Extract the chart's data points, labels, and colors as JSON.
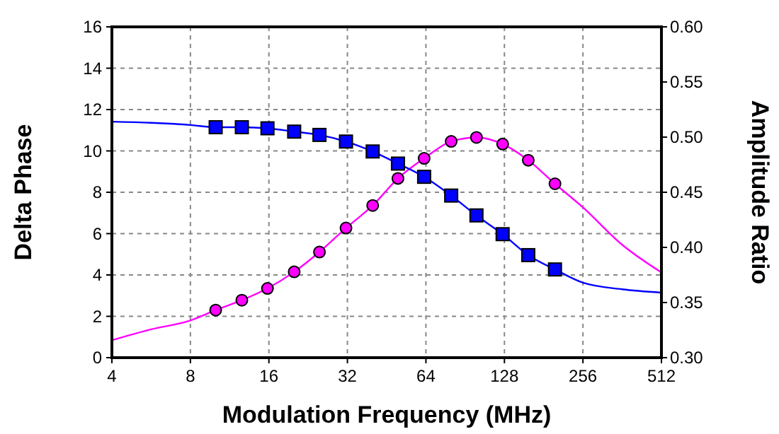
{
  "chart_data": {
    "type": "line",
    "xlabel": "Modulation Frequency (MHz)",
    "ylabel": "Delta Phase",
    "y2label": "Amplitude Ratio",
    "log": "x",
    "grid": true,
    "xlim": [
      4,
      512
    ],
    "xticks": [
      4,
      8,
      16,
      32,
      64,
      128,
      256,
      512
    ],
    "ylim": [
      0,
      16
    ],
    "yticks": [
      0,
      2,
      4,
      6,
      8,
      10,
      12,
      14,
      16
    ],
    "y2lim": [
      0.3,
      0.6
    ],
    "y2ticks": [
      {
        "value": 0.3,
        "label": "0.30"
      },
      {
        "value": 0.35,
        "label": "0.35"
      },
      {
        "value": 0.4,
        "label": "0.40"
      },
      {
        "value": 0.45,
        "label": "0.45"
      },
      {
        "value": 0.5,
        "label": "0.50"
      },
      {
        "value": 0.55,
        "label": "0.55"
      },
      {
        "value": 0.6,
        "label": "0.60"
      }
    ],
    "series": [
      {
        "color": "#ff00ff",
        "marker": "none",
        "x": [
          4,
          5.66,
          8,
          10,
          12.6,
          15.8,
          20,
          25,
          31.6,
          40,
          50,
          63,
          80,
          100,
          126,
          158,
          200,
          256,
          362,
          512
        ],
        "values": [
          0.84,
          1.37,
          1.8,
          2.3,
          2.78,
          3.35,
          4.15,
          5.11,
          6.27,
          7.36,
          8.67,
          9.64,
          10.46,
          10.65,
          10.33,
          9.55,
          8.41,
          7.27,
          5.46,
          4.12
        ]
      },
      {
        "axis": "y2",
        "color": "#0000ff",
        "marker": "none",
        "x": [
          4,
          5.66,
          8,
          10,
          12.6,
          15.8,
          20,
          25,
          31.6,
          40,
          50,
          63,
          80,
          100,
          126,
          158,
          200,
          256,
          362,
          512
        ],
        "values": [
          0.514,
          0.513,
          0.511,
          0.509,
          0.509,
          0.508,
          0.505,
          0.502,
          0.496,
          0.487,
          0.476,
          0.464,
          0.447,
          0.429,
          0.412,
          0.393,
          0.38,
          0.368,
          0.362,
          0.359
        ]
      },
      {
        "type": "scatter",
        "color": "#ff00ff",
        "marker": "circle",
        "x": [
          10,
          12.6,
          15.8,
          20,
          25,
          31.6,
          40,
          50,
          63,
          80,
          100,
          126,
          158,
          200
        ],
        "values": [
          2.3,
          2.78,
          3.35,
          4.15,
          5.11,
          6.27,
          7.36,
          8.67,
          9.64,
          10.46,
          10.65,
          10.33,
          9.55,
          8.41
        ]
      },
      {
        "type": "scatter",
        "axis": "y2",
        "color": "#0000ff",
        "marker": "square",
        "x": [
          10,
          12.6,
          15.8,
          20,
          25,
          31.6,
          40,
          50,
          63,
          80,
          100,
          126,
          158,
          200
        ],
        "values": [
          0.509,
          0.509,
          0.508,
          0.505,
          0.502,
          0.496,
          0.487,
          0.476,
          0.464,
          0.447,
          0.429,
          0.412,
          0.393,
          0.38
        ]
      }
    ]
  }
}
